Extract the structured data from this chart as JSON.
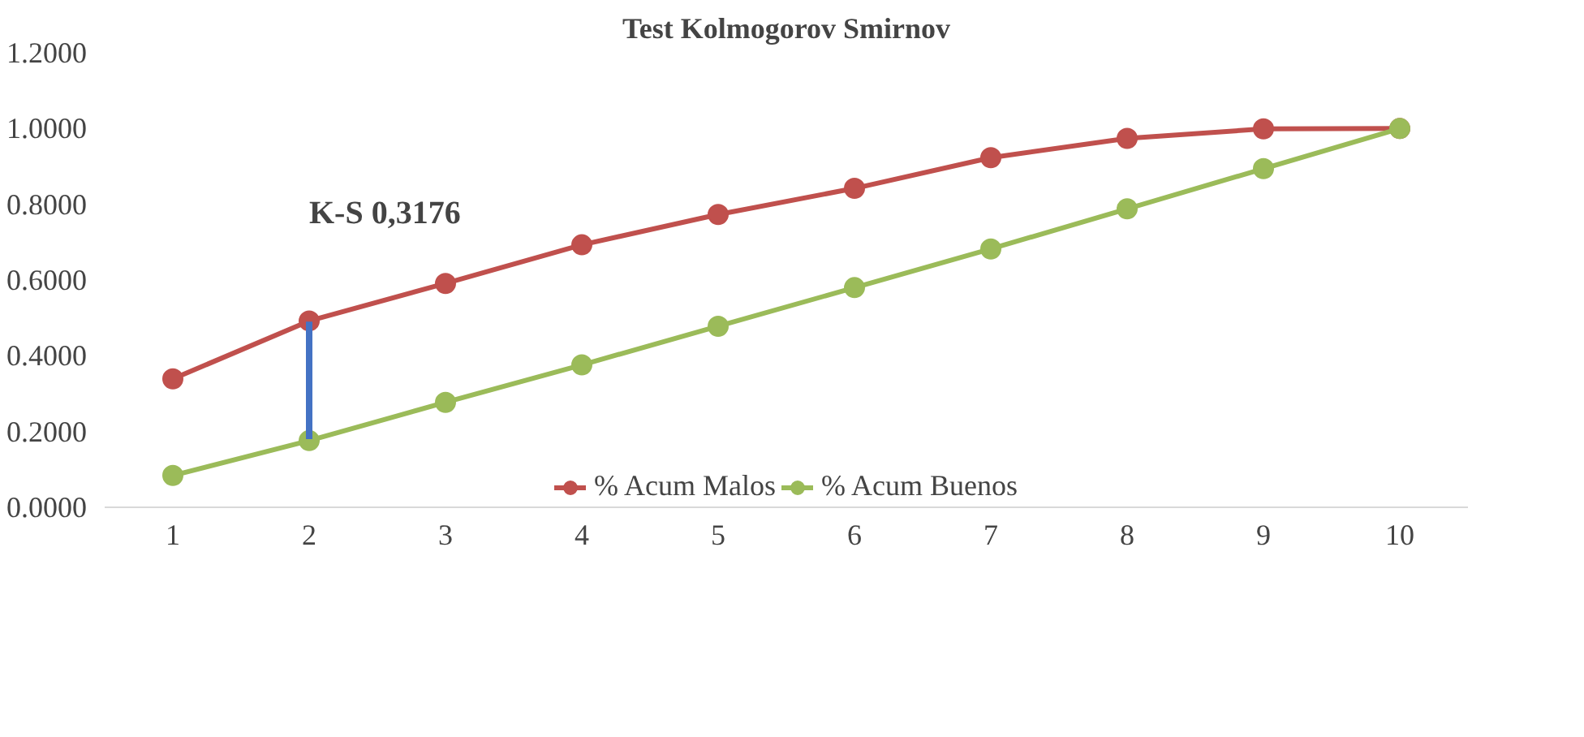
{
  "chart_data": {
    "type": "line",
    "title": "Test Kolmogorov Smirnov",
    "x": [
      1,
      2,
      3,
      4,
      5,
      6,
      7,
      8,
      9,
      10
    ],
    "xlim": [
      0.5,
      10.5
    ],
    "xticks": [
      1,
      2,
      3,
      4,
      5,
      6,
      7,
      8,
      9,
      10
    ],
    "ylim": [
      0,
      1.2
    ],
    "yticks": [
      {
        "value": 0,
        "label": "0.0000"
      },
      {
        "value": 0.2,
        "label": "0.2000"
      },
      {
        "value": 0.4,
        "label": "0.4000"
      },
      {
        "value": 0.6,
        "label": "0.6000"
      },
      {
        "value": 0.8,
        "label": "0.8000"
      },
      {
        "value": 1.0,
        "label": "1.0000"
      },
      {
        "value": 1.2,
        "label": "1.2000"
      }
    ],
    "series": [
      {
        "name": "% Acum Malos",
        "color": "#c0504d",
        "values": [
          0.339,
          0.492,
          0.591,
          0.693,
          0.773,
          0.842,
          0.923,
          0.974,
          0.999,
          1.0
        ]
      },
      {
        "name": "% Acum Buenos",
        "color": "#9bbb59",
        "values": [
          0.084,
          0.176,
          0.277,
          0.376,
          0.478,
          0.58,
          0.682,
          0.788,
          0.894,
          1.0
        ]
      },
      {
        "color": "#4472c4",
        "x": [
          2,
          2
        ],
        "values": [
          0.18,
          0.49
        ],
        "marker": "none"
      }
    ],
    "annotations": [
      {
        "text": "K-S 0,3176",
        "x": 2,
        "y": 0.492
      }
    ],
    "marker": "circle",
    "legend": "bottom",
    "grid": false
  }
}
